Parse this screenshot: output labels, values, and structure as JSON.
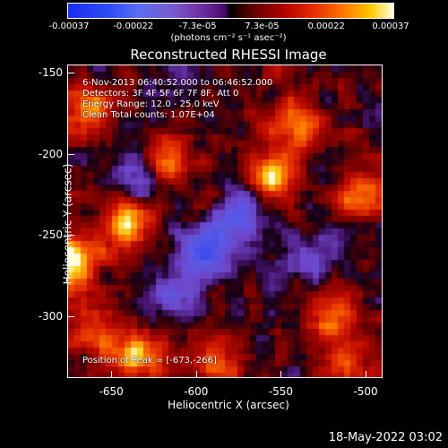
{
  "colorbar": {
    "ticks": [
      "-0.00037",
      "-0.00022",
      "-7.3e-05",
      "7.3e-05",
      "0.00022",
      "0.00037"
    ],
    "unit_label": "(photons cm⁻² s⁻¹ asec⁻²)"
  },
  "chart_data": {
    "type": "heatmap",
    "title": "Reconstructed RHESSI Image",
    "xlabel": "Heliocentric X (arcsec)",
    "ylabel": "Heliocentric Y (arcsec)",
    "xlim": [
      -676,
      -490
    ],
    "ylim": [
      -338,
      -145
    ],
    "xticks": [
      "-650",
      "-600",
      "-550",
      "-500"
    ],
    "xtick_values": [
      -650,
      -600,
      -550,
      -500
    ],
    "yticks": [
      "-150",
      "-200",
      "-250",
      "-300"
    ],
    "ytick_values": [
      -150,
      -200,
      -250,
      -300
    ],
    "zlim": [
      -0.00037,
      0.00037
    ],
    "annotations": {
      "time_range": "6-Nov-2013 06:40:52.000 to 06:46:52.000",
      "detectors": "Detectors: 3F 4F 5F 6F 7F 8F, Att 0",
      "energy": "Energy Range: 12.0 - 25.0 keV",
      "method": "Clean     Total counts: 1.07E+04",
      "peak": "Position of Peak = [-673,-266]"
    },
    "bright_sources": [
      {
        "x": -673,
        "y": -266,
        "z": 0.00037
      },
      {
        "x": -555,
        "y": -213,
        "z": 0.0003
      },
      {
        "x": -642,
        "y": -242,
        "z": 0.00028
      },
      {
        "x": -665,
        "y": -172,
        "z": 0.00026
      },
      {
        "x": -635,
        "y": -325,
        "z": 0.00027
      },
      {
        "x": -618,
        "y": -205,
        "z": 0.00025
      },
      {
        "x": -520,
        "y": -300,
        "z": 0.00024
      },
      {
        "x": -540,
        "y": -180,
        "z": 0.00022
      },
      {
        "x": -500,
        "y": -225,
        "z": 0.00023
      },
      {
        "x": -590,
        "y": -330,
        "z": 0.0002
      },
      {
        "x": -660,
        "y": -312,
        "z": 0.00018
      },
      {
        "x": -510,
        "y": -330,
        "z": 0.00019
      }
    ],
    "dark_regions": [
      {
        "x": -595,
        "y": -260,
        "z": -0.0003
      },
      {
        "x": -575,
        "y": -238,
        "z": -0.00025
      },
      {
        "x": -635,
        "y": -215,
        "z": -0.0002
      },
      {
        "x": -610,
        "y": -285,
        "z": -0.00018
      },
      {
        "x": -530,
        "y": -265,
        "z": -0.00015
      }
    ]
  },
  "timestamp": "18-May-2022 03:02"
}
